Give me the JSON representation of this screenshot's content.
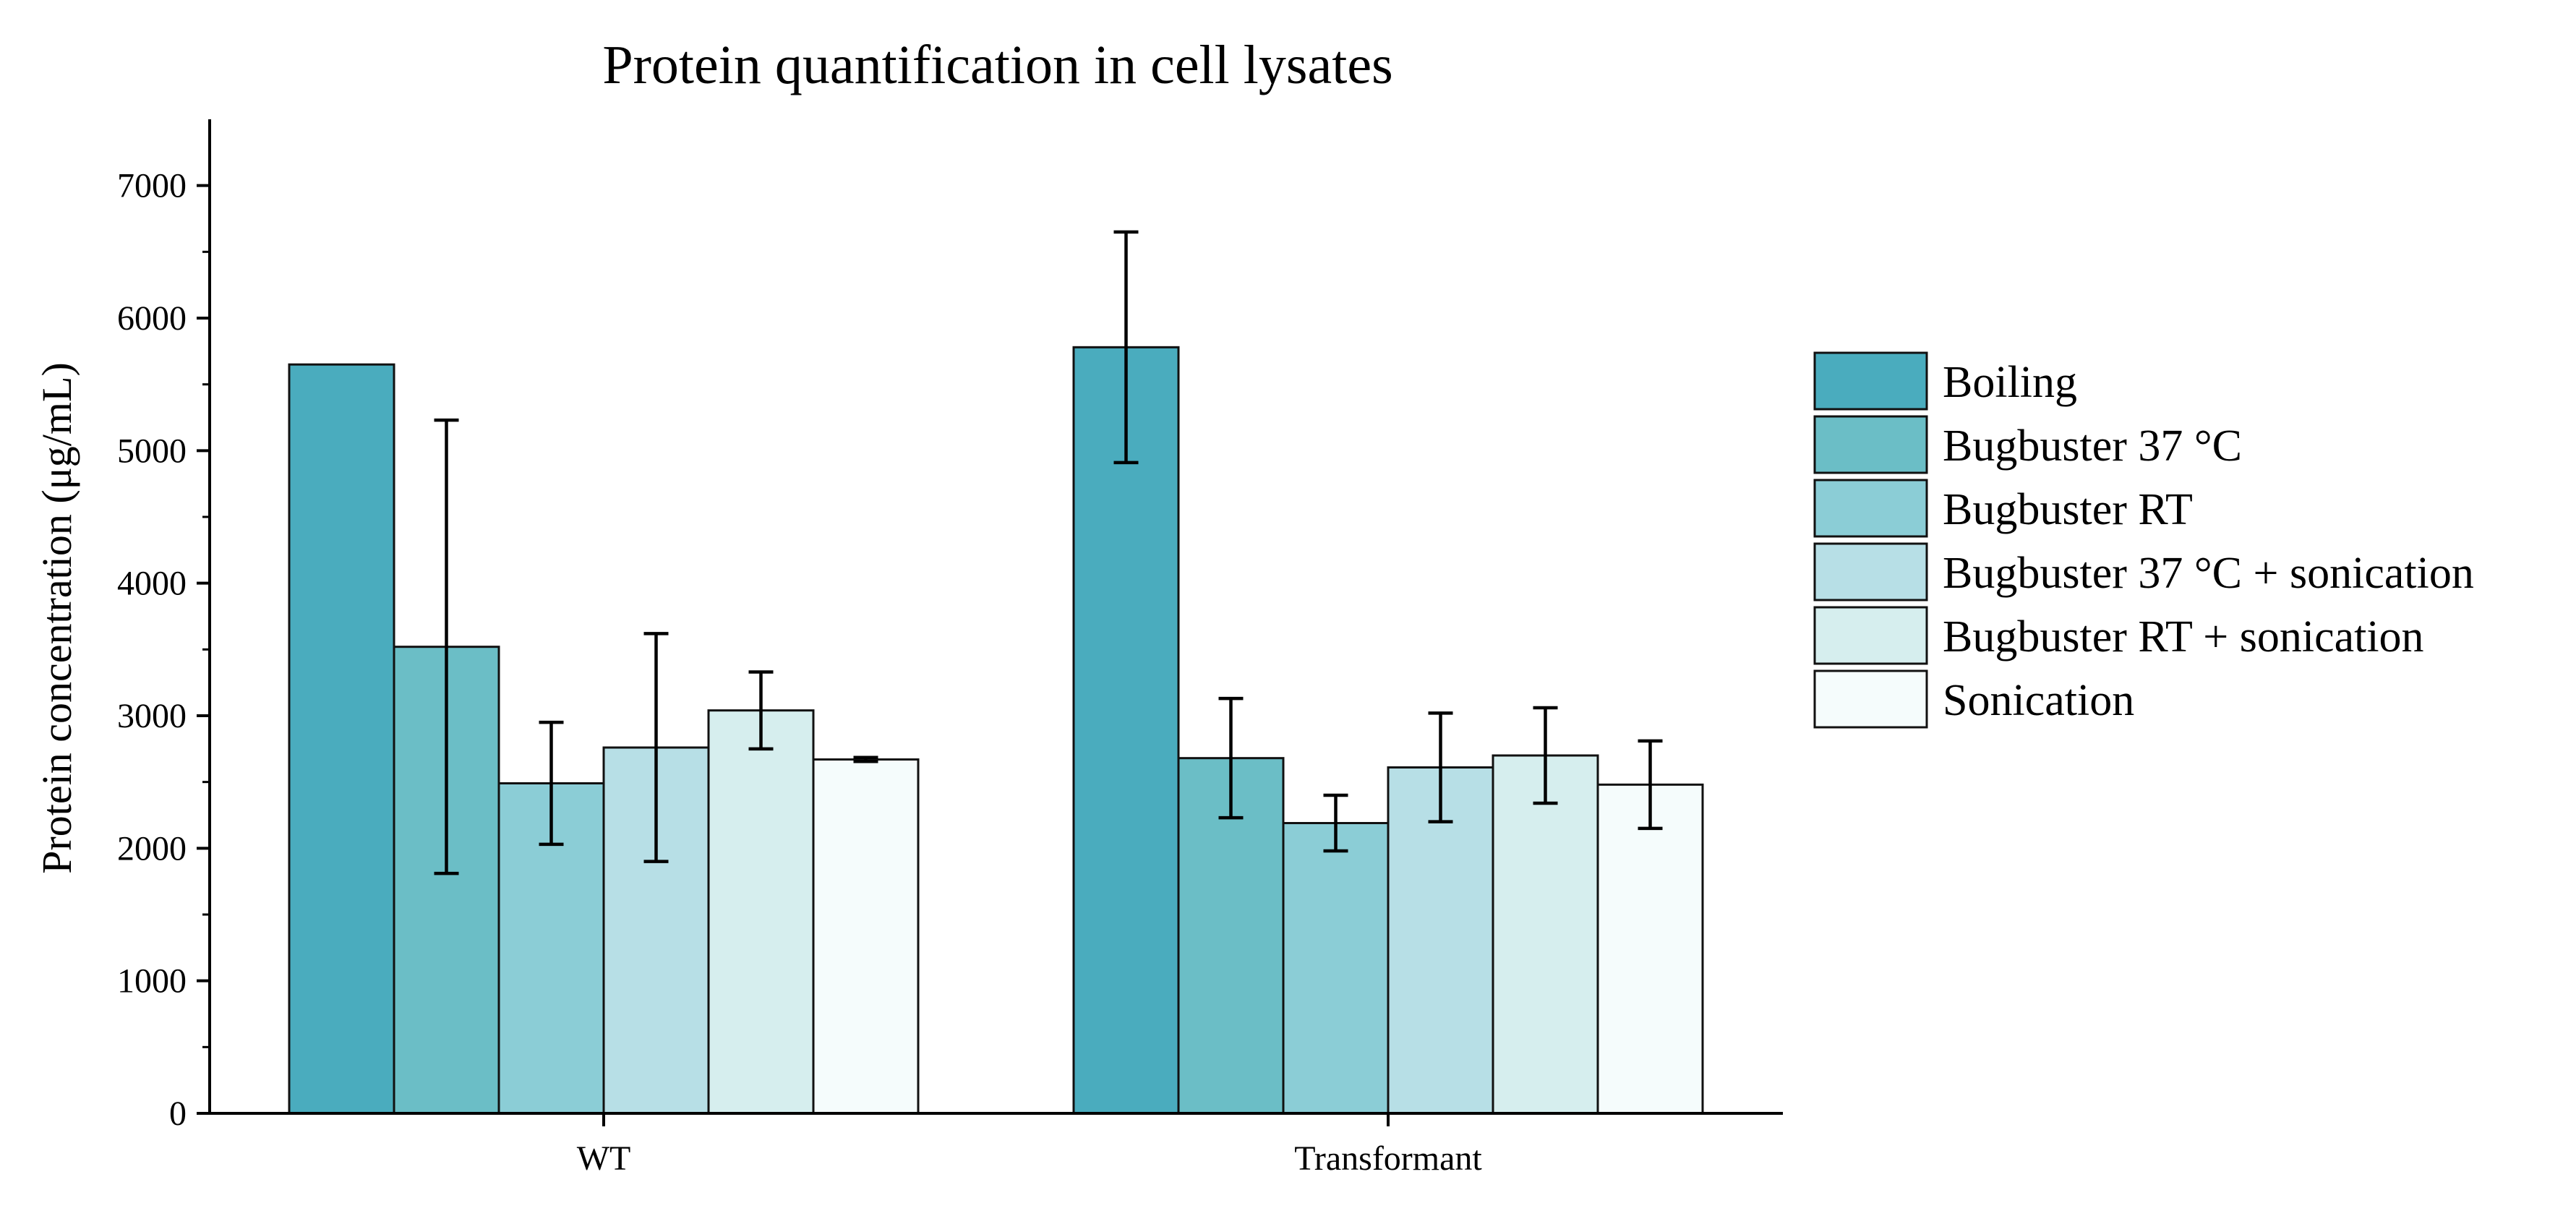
{
  "chart_data": {
    "type": "bar",
    "title": "Protein quantification in cell lysates",
    "xlabel": "",
    "ylabel": "Protein concentration (μg/mL)",
    "ylim": [
      0,
      7500
    ],
    "yticks": [
      0,
      1000,
      2000,
      3000,
      4000,
      5000,
      6000,
      7000
    ],
    "categories": [
      "WT",
      "Transformant"
    ],
    "legend_position": "right",
    "series": [
      {
        "name": "Boiling",
        "color": "#4AACBE",
        "values": [
          5650,
          5780
        ],
        "errors": [
          null,
          870
        ]
      },
      {
        "name": "Bugbuster 37 °C",
        "color": "#6BBEC6",
        "values": [
          3520,
          2680
        ],
        "errors": [
          1710,
          450
        ]
      },
      {
        "name": "Bugbuster RT",
        "color": "#8BCDD6",
        "values": [
          2490,
          2190
        ],
        "errors": [
          460,
          210
        ]
      },
      {
        "name": "Bugbuster 37 °C + sonication",
        "color": "#B7DFE6",
        "values": [
          2760,
          2610
        ],
        "errors": [
          860,
          410
        ]
      },
      {
        "name": "Bugbuster RT + sonication",
        "color": "#D6EEEE",
        "values": [
          3040,
          2700
        ],
        "errors": [
          290,
          360
        ]
      },
      {
        "name": "Sonication",
        "color": "#F5FCFC",
        "values": [
          2670,
          2480
        ],
        "errors": [
          15,
          330
        ]
      }
    ]
  }
}
